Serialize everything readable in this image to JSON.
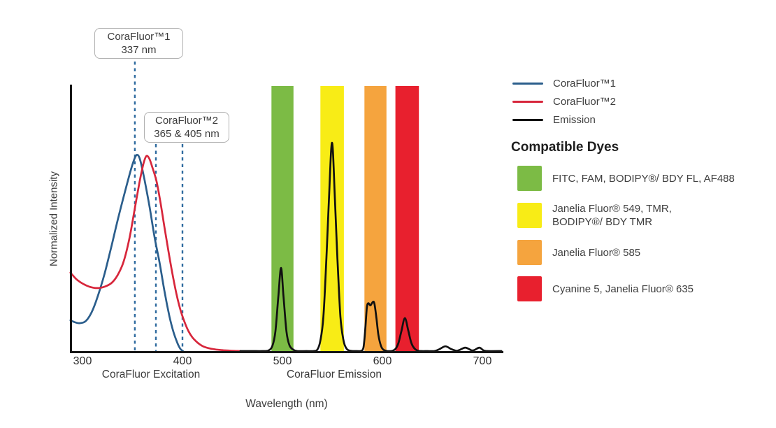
{
  "figure": {
    "axis": {
      "ylabel": "Normalized Intensity",
      "xlabel": "Wavelength (nm)",
      "x_section_labels": {
        "excitation": "CoraFluor Excitation",
        "emission": "CoraFluor Emission"
      }
    },
    "callouts": [
      {
        "line1": "CoraFluor™1",
        "line2": "337 nm"
      },
      {
        "line1": "CoraFluor™2",
        "line2": "365 & 405 nm"
      }
    ],
    "legend": [
      {
        "label": "CoraFluor™1",
        "color": "#2b5e8c"
      },
      {
        "label": "CoraFluor™2",
        "color": "#d7263b"
      },
      {
        "label": "Emission",
        "color": "#111111"
      }
    ],
    "dyes": {
      "heading": "Compatible Dyes",
      "items": [
        {
          "color": "#7cbb45",
          "lines": [
            "FITC, FAM, BODIPY®/ BDY FL, AF488"
          ]
        },
        {
          "color": "#f8ec16",
          "lines": [
            "Janelia Fluor® 549, TMR,",
            "BODIPY®/ BDY TMR"
          ]
        },
        {
          "color": "#f5a43e",
          "lines": [
            "Janelia Fluor® 585"
          ]
        },
        {
          "color": "#e8202e",
          "lines": [
            "Cyanine 5, Janelia Fluor® 635"
          ]
        }
      ]
    }
  },
  "chart_data": {
    "type": "line",
    "xlabel": "Wavelength (nm)",
    "ylabel": "Normalized Intensity",
    "x_ticks": [
      300,
      400,
      500,
      600,
      700
    ],
    "x_range_nm": [
      287,
      722
    ],
    "y_range": [
      0,
      1
    ],
    "grid": false,
    "legend_position": "right",
    "marker_color": "#2f6b9f",
    "markers": [
      {
        "nm_visual": 352.4,
        "labeled_nm": 337,
        "callout": "CoraFluor™1 337 nm"
      },
      {
        "nm_visual": 373.4,
        "labeled_nm": 365,
        "callout": "CoraFluor™2 365 & 405 nm"
      },
      {
        "nm_visual": 400.0,
        "labeled_nm": 405,
        "callout": "CoraFluor™2 365 & 405 nm"
      }
    ],
    "bands": [
      {
        "id": "green",
        "color": "#7cbb45",
        "nm": [
          489,
          511
        ],
        "dyes": "FITC, FAM, BODIPY®/ BDY FL, AF488"
      },
      {
        "id": "yellow",
        "color": "#f8ec16",
        "nm": [
          538,
          561.5
        ],
        "dyes": "Janelia Fluor® 549, TMR, BODIPY®/ BDY TMR"
      },
      {
        "id": "orange",
        "color": "#f5a43e",
        "nm": [
          582,
          604
        ],
        "dyes": "Janelia Fluor® 585"
      },
      {
        "id": "red",
        "color": "#e8202e",
        "nm": [
          613,
          636.5
        ],
        "dyes": "Cyanine 5, Janelia Fluor® 635"
      }
    ],
    "series": [
      {
        "id": "corafluor1-excitation",
        "name": "CoraFluor™1",
        "color": "#2b5e8c",
        "stated_peak_nm": 337,
        "points": [
          [
            288,
            0.116
          ],
          [
            292,
            0.109
          ],
          [
            297,
            0.105
          ],
          [
            303,
            0.112
          ],
          [
            309,
            0.145
          ],
          [
            315,
            0.203
          ],
          [
            322,
            0.29
          ],
          [
            329,
            0.395
          ],
          [
            336,
            0.505
          ],
          [
            343,
            0.607
          ],
          [
            349,
            0.69
          ],
          [
            353,
            0.732
          ],
          [
            355.5,
            0.737
          ],
          [
            358,
            0.715
          ],
          [
            362,
            0.645
          ],
          [
            367,
            0.545
          ],
          [
            372,
            0.43
          ],
          [
            377,
            0.335
          ],
          [
            382,
            0.225
          ],
          [
            387,
            0.13
          ],
          [
            391,
            0.072
          ],
          [
            395,
            0.03
          ],
          [
            398,
            0.008
          ],
          [
            400.5,
            0
          ]
        ]
      },
      {
        "id": "corafluor2-excitation",
        "name": "CoraFluor™2",
        "color": "#d7263b",
        "stated_peaks_nm": [
          365,
          405
        ],
        "points": [
          [
            288,
            0.295
          ],
          [
            294,
            0.27
          ],
          [
            301,
            0.252
          ],
          [
            308,
            0.241
          ],
          [
            315,
            0.237
          ],
          [
            322,
            0.242
          ],
          [
            329,
            0.256
          ],
          [
            335,
            0.285
          ],
          [
            341,
            0.335
          ],
          [
            347,
            0.425
          ],
          [
            352,
            0.53
          ],
          [
            357,
            0.635
          ],
          [
            361,
            0.705
          ],
          [
            364,
            0.734
          ],
          [
            367,
            0.723
          ],
          [
            370,
            0.69
          ],
          [
            374,
            0.64
          ],
          [
            378,
            0.56
          ],
          [
            382,
            0.465
          ],
          [
            386,
            0.375
          ],
          [
            390,
            0.29
          ],
          [
            394,
            0.215
          ],
          [
            398,
            0.155
          ],
          [
            402,
            0.11
          ],
          [
            406,
            0.075
          ],
          [
            410,
            0.051
          ],
          [
            415,
            0.032
          ],
          [
            420,
            0.019
          ],
          [
            426,
            0.011
          ],
          [
            433,
            0.006
          ],
          [
            441,
            0.003
          ],
          [
            450,
            0.001
          ],
          [
            458,
            0
          ]
        ]
      },
      {
        "id": "emission",
        "name": "Emission",
        "color": "#111111",
        "emission_peaks": [
          {
            "nm": 499,
            "intensity": 0.31
          },
          {
            "nm": 549.6,
            "intensity": 0.78
          },
          {
            "nm": 590,
            "intensity": 0.19
          },
          {
            "nm": 622.5,
            "intensity": 0.12
          }
        ],
        "points": [
          [
            458,
            0
          ],
          [
            470,
            0
          ],
          [
            480,
            0
          ],
          [
            486,
            0.002
          ],
          [
            490,
            0.02
          ],
          [
            493,
            0.075
          ],
          [
            496,
            0.21
          ],
          [
            498.6,
            0.313
          ],
          [
            501,
            0.21
          ],
          [
            504,
            0.075
          ],
          [
            507,
            0.022
          ],
          [
            511,
            0.005
          ],
          [
            515,
            0
          ],
          [
            524,
            0
          ],
          [
            531,
            0
          ],
          [
            535,
            0.006
          ],
          [
            538,
            0.04
          ],
          [
            541,
            0.13
          ],
          [
            544,
            0.35
          ],
          [
            546.5,
            0.57
          ],
          [
            549.6,
            0.784
          ],
          [
            552.5,
            0.57
          ],
          [
            555,
            0.35
          ],
          [
            558,
            0.13
          ],
          [
            561,
            0.042
          ],
          [
            564,
            0.01
          ],
          [
            568,
            0.001
          ],
          [
            574,
            0
          ],
          [
            578,
            0
          ],
          [
            581,
            0.012
          ],
          [
            583,
            0.09
          ],
          [
            584.5,
            0.165
          ],
          [
            586,
            0.18
          ],
          [
            588,
            0.172
          ],
          [
            590.5,
            0.185
          ],
          [
            592,
            0.178
          ],
          [
            594,
            0.125
          ],
          [
            596,
            0.06
          ],
          [
            598.5,
            0.02
          ],
          [
            601,
            0.005
          ],
          [
            605,
            0
          ],
          [
            609,
            0
          ],
          [
            613,
            0.008
          ],
          [
            616,
            0.03
          ],
          [
            619,
            0.075
          ],
          [
            622.5,
            0.124
          ],
          [
            626,
            0.075
          ],
          [
            629,
            0.03
          ],
          [
            632,
            0.01
          ],
          [
            635,
            0.002
          ],
          [
            639,
            0
          ],
          [
            645,
            0
          ],
          [
            652,
            0
          ],
          [
            657,
            0.007
          ],
          [
            663,
            0.018
          ],
          [
            669,
            0.007
          ],
          [
            674,
            0.001
          ],
          [
            677,
            0.004
          ],
          [
            683,
            0.013
          ],
          [
            689,
            0.003
          ],
          [
            692,
            0.004
          ],
          [
            697,
            0.013
          ],
          [
            701,
            0.003
          ],
          [
            705,
            0
          ],
          [
            719,
            0
          ]
        ]
      }
    ]
  }
}
